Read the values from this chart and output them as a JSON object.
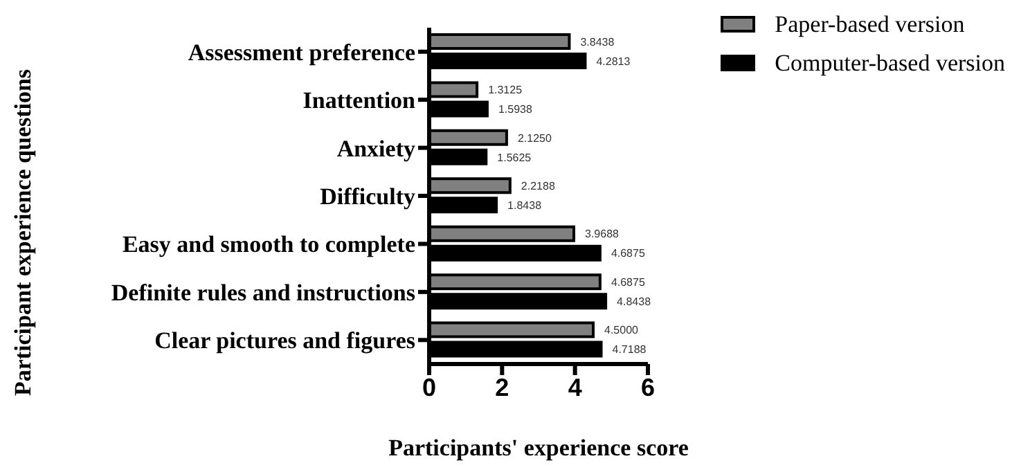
{
  "chart_data": {
    "type": "bar",
    "orientation": "horizontal",
    "xlabel": "Participants' experience score",
    "ylabel": "Participant experience questions",
    "categories": [
      "Assessment preference",
      "Inattention",
      "Anxiety",
      "Difficulty",
      "Easy and smooth to complete",
      "Definite rules and instructions",
      "Clear pictures and figures"
    ],
    "series": [
      {
        "name": "Paper-based version",
        "color": "#808080",
        "values": [
          3.8438,
          1.3125,
          2.125,
          2.2188,
          3.9688,
          4.6875,
          4.5
        ],
        "value_labels": [
          "3.8438",
          "1.3125",
          "2.1250",
          "2.2188",
          "3.9688",
          "4.6875",
          "4.5000"
        ]
      },
      {
        "name": "Computer-based version",
        "color": "#000000",
        "values": [
          4.2813,
          1.5938,
          1.5625,
          1.8438,
          4.6875,
          4.8438,
          4.7188
        ],
        "value_labels": [
          "4.2813",
          "1.5938",
          "1.5625",
          "1.8438",
          "4.6875",
          "4.8438",
          "4.7188"
        ]
      }
    ],
    "xlim": [
      0,
      6
    ],
    "xticks": [
      0,
      2,
      4,
      6
    ],
    "grid": false,
    "legend": "top right"
  }
}
